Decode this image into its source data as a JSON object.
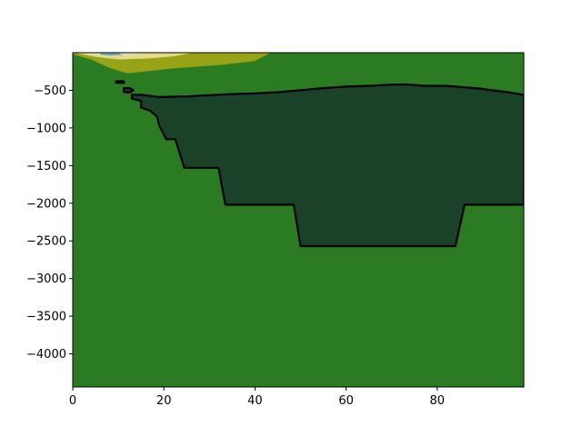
{
  "chart_data": {
    "type": "heatmap",
    "title": "",
    "xlabel": "",
    "ylabel": "",
    "xlim": [
      0,
      99
    ],
    "ylim": [
      -4440,
      0
    ],
    "x_ticks": [
      0,
      20,
      40,
      60,
      80
    ],
    "x_tick_labels": [
      "0",
      "20",
      "40",
      "60",
      "80"
    ],
    "y_ticks": [
      -500,
      -1000,
      -1500,
      -2000,
      -2500,
      -3000,
      -3500,
      -4000
    ],
    "y_tick_labels": [
      "−500",
      "−1000",
      "−1500",
      "−2000",
      "−2500",
      "−3000",
      "−3500",
      "−4000"
    ],
    "grid": false,
    "colors": {
      "background_field": "#2b7b22",
      "dark_region": "#1a4229",
      "olive_band": "#97a316",
      "yellow_band": "#e6d98a",
      "light_band": "#d8e6ce",
      "teal_band": "#6aaab5",
      "outline": "#000000"
    },
    "filled_regions": [
      {
        "color_key": "olive_band",
        "points": [
          [
            0,
            0
          ],
          [
            43.5,
            0
          ],
          [
            40,
            -110
          ],
          [
            33,
            -160
          ],
          [
            22,
            -210
          ],
          [
            12,
            -275
          ],
          [
            8,
            -200
          ],
          [
            4,
            -90
          ],
          [
            0,
            -20
          ]
        ]
      },
      {
        "color_key": "yellow_band",
        "points": [
          [
            1,
            0
          ],
          [
            26.5,
            0
          ],
          [
            22,
            -50
          ],
          [
            17,
            -75
          ],
          [
            10,
            -90
          ],
          [
            5,
            -55
          ],
          [
            1,
            -10
          ]
        ]
      },
      {
        "color_key": "light_band",
        "points": [
          [
            2,
            0
          ],
          [
            17,
            0
          ],
          [
            14,
            -20
          ],
          [
            8,
            -40
          ],
          [
            3,
            -15
          ]
        ]
      },
      {
        "color_key": "teal_band",
        "points": [
          [
            6,
            -10
          ],
          [
            10,
            -5
          ],
          [
            11,
            -30
          ],
          [
            8,
            -40
          ],
          [
            6,
            -25
          ]
        ]
      },
      {
        "color_key": "dark_region",
        "outlined": true,
        "points": [
          [
            13,
            -560
          ],
          [
            15,
            -560
          ],
          [
            19,
            -590
          ],
          [
            25,
            -580
          ],
          [
            30,
            -565
          ],
          [
            35,
            -550
          ],
          [
            40,
            -540
          ],
          [
            45,
            -525
          ],
          [
            50,
            -500
          ],
          [
            55,
            -470
          ],
          [
            60,
            -450
          ],
          [
            65,
            -440
          ],
          [
            70,
            -425
          ],
          [
            73,
            -420
          ],
          [
            77,
            -440
          ],
          [
            82,
            -440
          ],
          [
            86,
            -460
          ],
          [
            90,
            -480
          ],
          [
            92,
            -500
          ],
          [
            95,
            -520
          ],
          [
            99,
            -560
          ],
          [
            99,
            -2020
          ],
          [
            86,
            -2020
          ],
          [
            84,
            -2570
          ],
          [
            50,
            -2570
          ],
          [
            48.5,
            -2020
          ],
          [
            33.5,
            -2020
          ],
          [
            32,
            -1530
          ],
          [
            24.5,
            -1530
          ],
          [
            22.5,
            -1150
          ],
          [
            20.5,
            -1150
          ],
          [
            19,
            -970
          ],
          [
            18.5,
            -850
          ],
          [
            17,
            -770
          ],
          [
            15,
            -730
          ],
          [
            15,
            -640
          ],
          [
            13,
            -610
          ]
        ]
      },
      {
        "color_key": "dark_region",
        "outlined": true,
        "points": [
          [
            11.2,
            -470
          ],
          [
            12.5,
            -470
          ],
          [
            13.3,
            -500
          ],
          [
            12.5,
            -530
          ],
          [
            11.2,
            -520
          ]
        ]
      },
      {
        "color_key": "dark_region",
        "outlined": true,
        "points": [
          [
            9.5,
            -380
          ],
          [
            11.2,
            -380
          ],
          [
            11.3,
            -400
          ],
          [
            9.5,
            -400
          ]
        ]
      }
    ]
  }
}
